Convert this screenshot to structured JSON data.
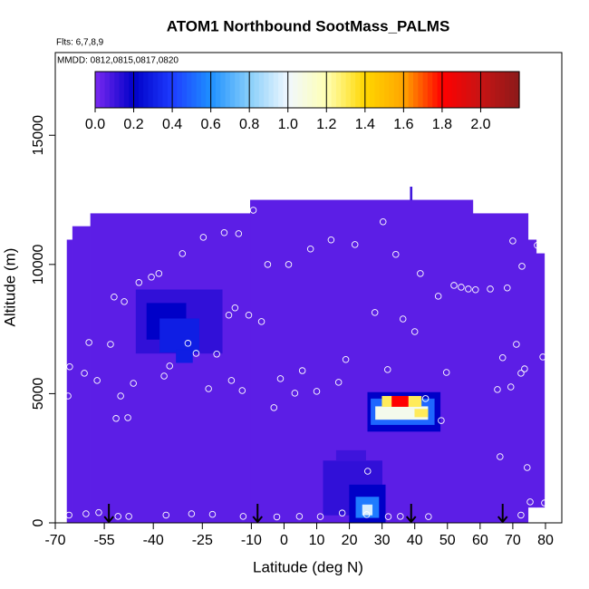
{
  "chart_data": {
    "type": "heatmap",
    "title": "ATOM1 Northbound SootMass_PALMS",
    "note1": "Flts: 6,7,8,9",
    "note2": "MMDD: 0812,0815,0817,0820",
    "x_label": "Latitude (deg N)",
    "y_label": "Altitude (m)",
    "xlim": [
      -70,
      85
    ],
    "ylim": [
      0,
      18200
    ],
    "xticks": [
      -70,
      -55,
      -40,
      -25,
      -10,
      0,
      10,
      20,
      30,
      40,
      50,
      60,
      70,
      80
    ],
    "yticks": [
      0,
      5000,
      10000,
      15000
    ],
    "zlim": [
      0,
      2.2
    ],
    "colormap": [
      "#7b28f0",
      "#0000c8",
      "#1e3cff",
      "#1e90ff",
      "#87cefa",
      "#f0f8ff",
      "#ffffb4",
      "#ffd700",
      "#ffa500",
      "#ff0000",
      "#c81414",
      "#8b1a1a"
    ],
    "zticks": [
      {
        "value": 0,
        "label": "0.0"
      },
      {
        "value": 0.2,
        "label": "0.2"
      },
      {
        "value": 0.4,
        "label": "0.4"
      },
      {
        "value": 0.6,
        "label": "0.6"
      },
      {
        "value": 0.8,
        "label": "0.8"
      },
      {
        "value": 1.0,
        "label": "1.0"
      },
      {
        "value": 1.2,
        "label": "1.2"
      },
      {
        "value": 1.4,
        "label": "1.4"
      },
      {
        "value": 1.6,
        "label": "1.6"
      },
      {
        "value": 1.8,
        "label": "1.8"
      },
      {
        "value": 2.0,
        "label": "2.0"
      }
    ],
    "cells": [
      [
        -66.4,
        -64.7,
        0,
        10950,
        0.05
      ],
      [
        -64.7,
        -59.2,
        0,
        11470,
        0.05
      ],
      [
        -59.2,
        -10.3,
        0,
        11970,
        0.05
      ],
      [
        -10.3,
        57.8,
        0,
        12490,
        0.05
      ],
      [
        57.8,
        74.7,
        0,
        11970,
        0.05
      ],
      [
        74.7,
        77.2,
        600,
        10950,
        0.05
      ],
      [
        77.2,
        79.7,
        600,
        10420,
        0.05
      ],
      [
        38.6,
        39.2,
        12490,
        13000,
        0.1
      ],
      [
        12,
        30,
        300,
        2400,
        0.12
      ],
      [
        16,
        25,
        2400,
        2800,
        0.1
      ],
      [
        -45.3,
        -18.9,
        6560,
        9020,
        0.12
      ],
      [
        -42,
        -30,
        7100,
        8500,
        0.2
      ],
      [
        -38,
        -26,
        6600,
        7900,
        0.3
      ],
      [
        -33,
        -28,
        6200,
        6700,
        0.3
      ],
      [
        25.6,
        47.8,
        3540,
        5050,
        0.2
      ],
      [
        26.6,
        46,
        3800,
        4800,
        0.5
      ],
      [
        28,
        44,
        4000,
        4500,
        1.05
      ],
      [
        30,
        42,
        4500,
        4900,
        1.3
      ],
      [
        33,
        38,
        4500,
        4900,
        1.8
      ],
      [
        40,
        44,
        4100,
        4400,
        1.3
      ],
      [
        20,
        31,
        0,
        1470,
        0.2
      ],
      [
        22,
        29,
        200,
        1000,
        0.55
      ],
      [
        24,
        27,
        300,
        700,
        0.95
      ]
    ],
    "points": {
      "lat": [
        -65.6,
        -66.1,
        -61.1,
        -59.7,
        -57.2,
        -53.1,
        -52,
        -48.9,
        -50,
        -51.4,
        -47.8,
        -46.1,
        -44.4,
        -40.6,
        -38.3,
        -36.7,
        -35,
        -31.1,
        -29.4,
        -26.9,
        -24.7,
        -23.1,
        -20.6,
        -18.3,
        -16.9,
        -16.1,
        -15,
        -13.9,
        -12.8,
        -10.8,
        -9.4,
        -6.9,
        -5,
        -3.1,
        -1.1,
        1.4,
        3.3,
        5.6,
        8.1,
        10,
        14.4,
        16.7,
        18.9,
        21.7,
        25.3,
        25.6,
        27.8,
        30.3,
        31.7,
        34.2,
        36.4,
        40,
        41.7,
        43.3,
        47.2,
        48.1,
        49.7,
        52,
        54.2,
        56.4,
        58.6,
        63.1,
        65.3,
        66.1,
        66.9,
        68.3,
        69.4,
        70,
        71.1,
        72.5,
        72.8,
        73.6,
        74.4,
        75.3,
        76.1,
        77.5,
        79.2,
        79.7,
        -65.8,
        -60.6,
        -56.7,
        -50.8,
        -47.5,
        -36.1,
        -28.3,
        -21.9,
        -12.5,
        -2.2,
        4.7,
        11.1,
        17.8,
        31.9,
        35.6,
        44.2,
        72.5
      ],
      "alt": [
        6040,
        4910,
        5790,
        6980,
        5510,
        6910,
        8740,
        8560,
        4910,
        4040,
        4070,
        5400,
        9300,
        9510,
        9650,
        5680,
        6070,
        10420,
        6950,
        6560,
        11050,
        5190,
        6530,
        11230,
        8040,
        5510,
        8320,
        11190,
        5120,
        8040,
        12100,
        7790,
        10000,
        4460,
        5580,
        10000,
        5020,
        5890,
        10600,
        5090,
        10950,
        5440,
        6320,
        10770,
        320,
        2000,
        8140,
        11650,
        5930,
        10390,
        7890,
        7400,
        9650,
        4810,
        8770,
        3960,
        5820,
        9190,
        9120,
        9050,
        9020,
        9050,
        5160,
        2560,
        6390,
        9090,
        5260,
        10910,
        6910,
        5790,
        9930,
        5960,
        2140,
        810,
        11890,
        10740,
        6420,
        770,
        300,
        350,
        400,
        250,
        250,
        300,
        350,
        330,
        250,
        230,
        250,
        240,
        380,
        240,
        250,
        240,
        300
      ]
    },
    "arrows": [
      -53.6,
      -8.1,
      38.9,
      66.9
    ]
  }
}
